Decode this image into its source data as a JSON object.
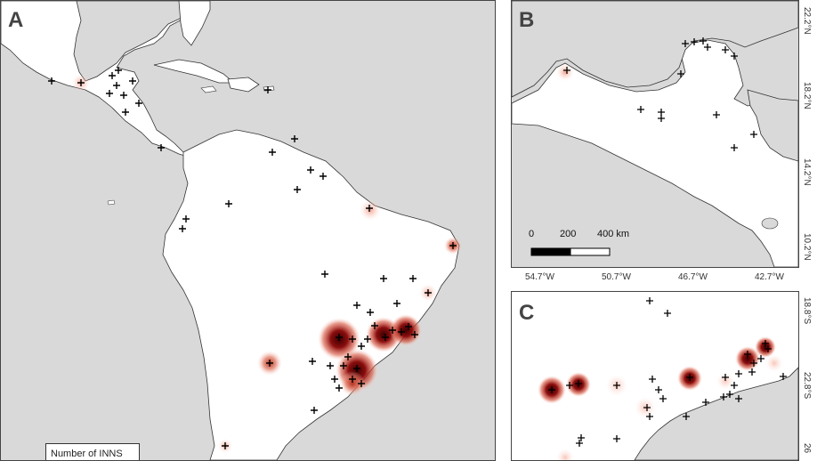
{
  "panels": {
    "a": {
      "letter": "A"
    },
    "b": {
      "letter": "B"
    },
    "c": {
      "letter": "C"
    }
  },
  "panel_b_lat_ticks": [
    "22.2°N",
    "18.2°N",
    "14.2°N",
    "10.2°N"
  ],
  "panel_c_lon_ticks": [
    "54.7°W",
    "50.7°W",
    "46.7°W",
    "42.7°W"
  ],
  "panel_c_lat_ticks": [
    "18.8°S",
    "22.8°S",
    "26"
  ],
  "scale_bar": {
    "labels": [
      "0",
      "200",
      "400 km"
    ]
  },
  "legend": {
    "title": "Number of INNS"
  },
  "colors": {
    "ocean": "#d9d9d9",
    "land": "#ffffff",
    "heat_core": "#5a0000",
    "heat_mid": "#c0392b",
    "heat_edge": "#f4b6a6",
    "occurrence_marker": "#000000"
  }
}
